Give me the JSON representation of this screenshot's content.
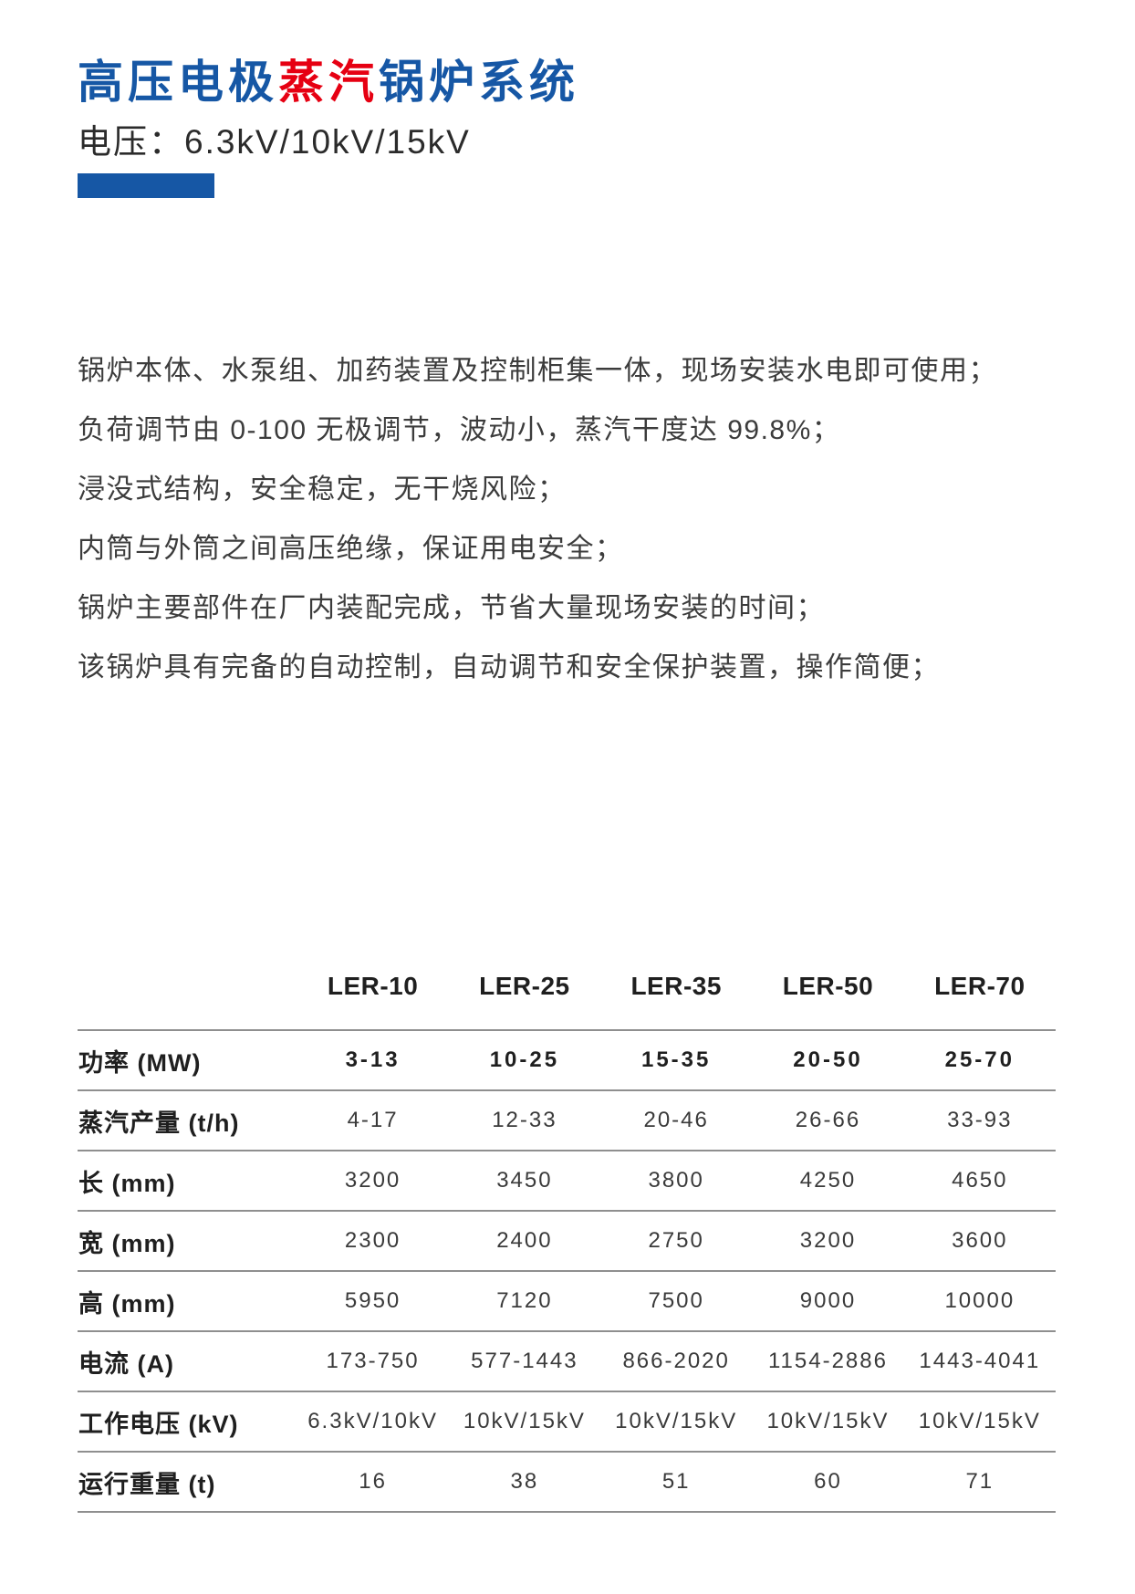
{
  "page": {
    "title": {
      "part1": "高压电极",
      "part2": "蒸汽",
      "part3": "锅炉系统"
    },
    "subtitle": "电压：6.3kV/10kV/15kV",
    "colors": {
      "accent_blue": "#1657A5",
      "accent_red": "#E60012",
      "body_text": "#3c3c3c",
      "table_line": "#8f8f8f"
    }
  },
  "features": [
    "锅炉本体、水泵组、加药装置及控制柜集一体，现场安装水电即可使用；",
    "负荷调节由 0-100 无极调节，波动小，蒸汽干度达 99.8%；",
    "浸没式结构，安全稳定，无干烧风险；",
    "内筒与外筒之间高压绝缘，保证用电安全；",
    "锅炉主要部件在厂内装配完成，节省大量现场安装的时间；",
    "该锅炉具有完备的自动控制，自动调节和安全保护装置，操作简便；"
  ],
  "table": {
    "columns": [
      "LER-10",
      "LER-25",
      "LER-35",
      "LER-50",
      "LER-70"
    ],
    "rows": [
      {
        "label": "功率 (MW)",
        "values": [
          "3-13",
          "10-25",
          "15-35",
          "20-50",
          "25-70"
        ]
      },
      {
        "label": "蒸汽产量 (t/h)",
        "values": [
          "4-17",
          "12-33",
          "20-46",
          "26-66",
          "33-93"
        ]
      },
      {
        "label": "长 (mm)",
        "values": [
          "3200",
          "3450",
          "3800",
          "4250",
          "4650"
        ]
      },
      {
        "label": "宽 (mm)",
        "values": [
          "2300",
          "2400",
          "2750",
          "3200",
          "3600"
        ]
      },
      {
        "label": "高 (mm)",
        "values": [
          "5950",
          "7120",
          "7500",
          "9000",
          "10000"
        ]
      },
      {
        "label": "电流 (A)",
        "values": [
          "173-750",
          "577-1443",
          "866-2020",
          "1154-2886",
          "1443-4041"
        ]
      },
      {
        "label": "工作电压 (kV)",
        "values": [
          "6.3kV/10kV",
          "10kV/15kV",
          "10kV/15kV",
          "10kV/15kV",
          "10kV/15kV"
        ]
      },
      {
        "label": "运行重量 (t)",
        "values": [
          "16",
          "38",
          "51",
          "60",
          "71"
        ]
      }
    ]
  }
}
